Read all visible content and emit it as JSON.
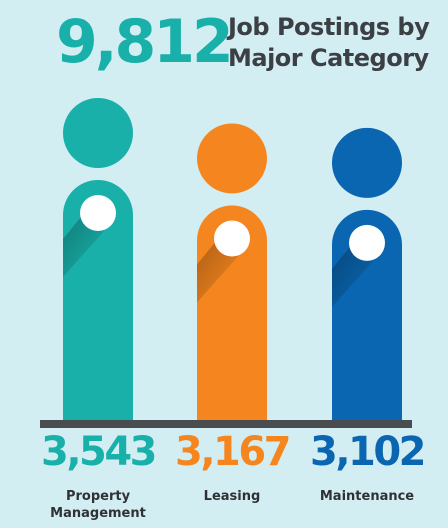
{
  "header": {
    "total": "9,812",
    "title_line1": "Job Postings by",
    "title_line2": "Major Category"
  },
  "colors": {
    "background": "#d3eef3",
    "teal": "#19b0aa",
    "orange": "#f5861f",
    "blue": "#0a66b0",
    "base_bar": "#4a4d50"
  },
  "chart_data": {
    "type": "bar",
    "title": "Job Postings by Major Category",
    "total": 9812,
    "categories": [
      "Property Management",
      "Leasing",
      "Maintenance"
    ],
    "values": [
      3543,
      3167,
      3102
    ],
    "value_labels": [
      "3,543",
      "3,167",
      "3,102"
    ],
    "category_labels": [
      [
        "Property",
        "Management"
      ],
      [
        "Leasing"
      ],
      [
        "Maintenance"
      ]
    ],
    "colors": [
      "#19b0aa",
      "#f5861f",
      "#0a66b0"
    ],
    "ylim": [
      0,
      3543
    ],
    "grid": false,
    "legend": "none"
  }
}
